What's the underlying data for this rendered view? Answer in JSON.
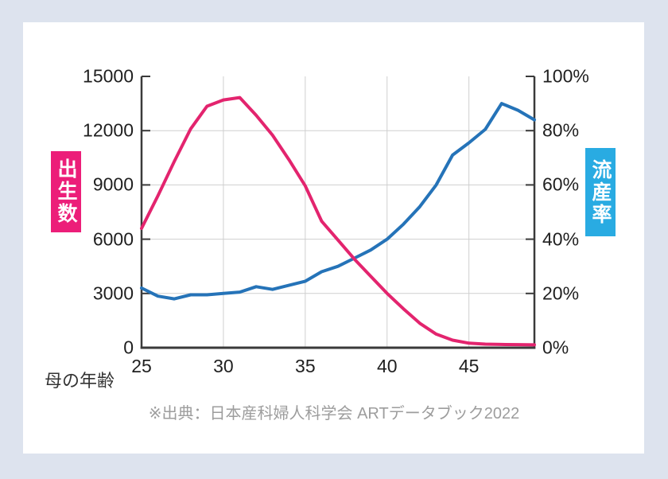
{
  "page": {
    "background": "#dde3ee",
    "card_background": "#ffffff"
  },
  "source_note": "※出典：日本産科婦人科学会 ARTデータブック2022",
  "chart_data": {
    "type": "line",
    "title": "",
    "xlabel": "母の年齢",
    "grid": true,
    "legend_position": "side-vertical-labels",
    "x": [
      25,
      26,
      27,
      28,
      29,
      30,
      31,
      32,
      33,
      34,
      35,
      36,
      37,
      38,
      39,
      40,
      41,
      42,
      43,
      44,
      45,
      46,
      47,
      48,
      49
    ],
    "x_range": [
      25,
      49
    ],
    "x_tick_values": [
      25,
      30,
      35,
      40,
      45
    ],
    "x_tick_labels": [
      "25",
      "30",
      "35",
      "40",
      "45"
    ],
    "left_axis": {
      "label": "出生数",
      "label_bg": "#EC1E79",
      "range": [
        0,
        15000
      ],
      "tick_step": 3000,
      "tick_values": [
        0,
        3000,
        6000,
        9000,
        12000,
        15000
      ],
      "tick_labels": [
        "0",
        "3000",
        "6000",
        "9000",
        "12000",
        "15000"
      ]
    },
    "right_axis": {
      "label": "流産率",
      "label_bg": "#29ABE2",
      "range": [
        0,
        100
      ],
      "tick_step": 20,
      "tick_values": [
        0,
        20,
        40,
        60,
        80,
        100
      ],
      "tick_labels": [
        "0%",
        "20%",
        "40%",
        "60%",
        "80%",
        "100%"
      ]
    },
    "series": [
      {
        "name": "出生数",
        "axis": "left",
        "color": "#E3246E",
        "values": [
          6600,
          8400,
          10300,
          12100,
          13350,
          13700,
          13830,
          12850,
          11750,
          10400,
          8950,
          7000,
          5950,
          4900,
          3950,
          3000,
          2150,
          1350,
          750,
          420,
          250,
          200,
          180,
          170,
          160
        ]
      },
      {
        "name": "流産率",
        "axis": "right",
        "color": "#2573B8",
        "values": [
          22,
          19,
          18,
          19.5,
          19.5,
          20,
          20.5,
          22.5,
          21.5,
          23,
          24.5,
          28,
          30,
          33,
          36,
          40,
          45.5,
          52,
          60,
          71,
          75.5,
          80.5,
          90,
          87.5,
          84
        ]
      }
    ],
    "style": {
      "grid_color": "#cfcfcf",
      "axis_color": "#3a3a3a",
      "tick_label_color": "#1f1f1f"
    }
  }
}
